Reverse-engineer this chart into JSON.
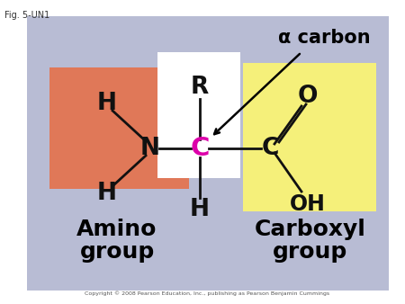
{
  "fig_label": "Fig. 5-UN1",
  "background_color": "#b8bcd4",
  "outer_bg": "#ffffff",
  "amino_box_color": "#e07858",
  "carboxyl_box_color": "#f5f07a",
  "alpha_box_color": "#ffffff",
  "title_alpha": "α carbon",
  "amino_label1": "Amino",
  "amino_label2": "group",
  "carboxyl_label1": "Carboxyl",
  "carboxyl_label2": "group",
  "copyright": "Copyright © 2008 Pearson Education, Inc., publishing as Pearson Benjamin Cummings",
  "center_C_color": "#dd00aa",
  "bond_color": "#111111",
  "atom_color": "#111111"
}
